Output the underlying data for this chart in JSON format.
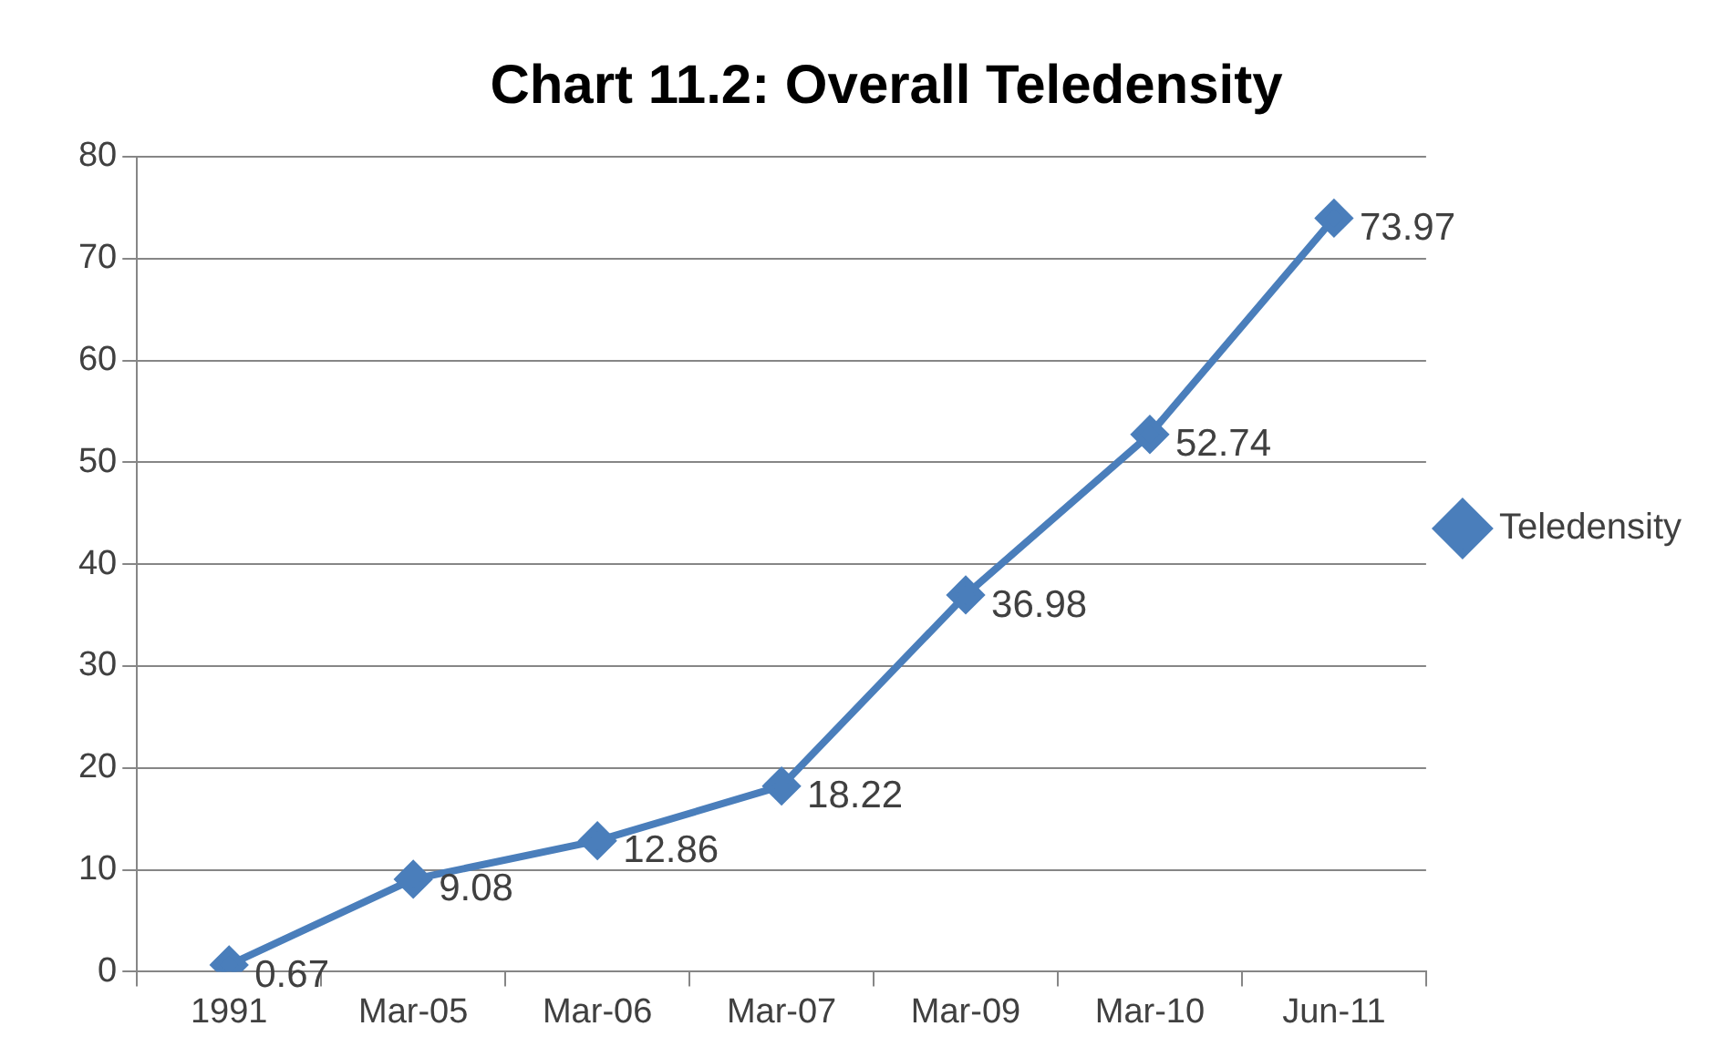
{
  "chart_data": {
    "type": "line",
    "title": "Chart 11.2: Overall Teledensity",
    "categories": [
      "1991",
      "Mar-05",
      "Mar-06",
      "Mar-07",
      "Mar-09",
      "Mar-10",
      "Jun-11"
    ],
    "series": [
      {
        "name": "Teledensity",
        "color": "#4a7ebb",
        "values": [
          0.67,
          9.08,
          12.86,
          18.22,
          36.98,
          52.74,
          73.97
        ]
      }
    ],
    "ylim": [
      0,
      80
    ],
    "yticks": [
      0,
      10,
      20,
      30,
      40,
      50,
      60,
      70,
      80
    ],
    "grid": "y",
    "legend": "right",
    "marker": "diamond",
    "line_style": "solid",
    "data_labels": true
  }
}
